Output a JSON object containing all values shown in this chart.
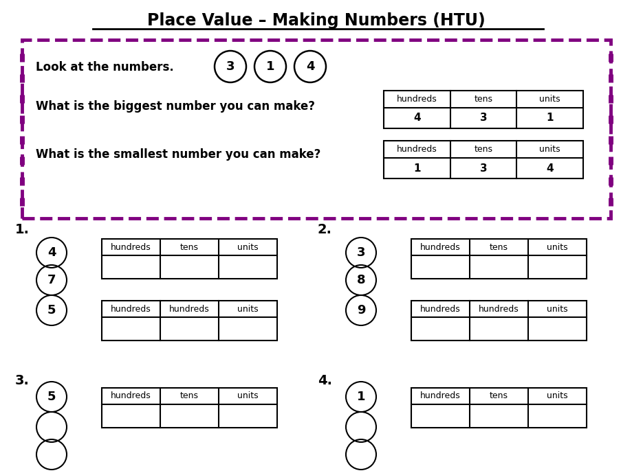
{
  "title": "Place Value – Making Numbers (HTU)",
  "bg_color": "#ffffff",
  "purple": "#800080",
  "black": "#000000",
  "example": {
    "numbers": [
      "3",
      "1",
      "4"
    ],
    "look_text": "Look at the numbers.",
    "biggest_text": "What is the biggest number you can make?",
    "smallest_text": "What is the smallest number you can make?",
    "biggest_row": [
      "4",
      "3",
      "1"
    ],
    "smallest_row": [
      "1",
      "3",
      "4"
    ]
  },
  "problems": [
    {
      "label": "1.",
      "circles": [
        "4",
        "7",
        "5"
      ],
      "table1_headers": [
        "hundreds",
        "tens",
        "units"
      ],
      "table2_headers": [
        "hundreds",
        "hundreds",
        "units"
      ]
    },
    {
      "label": "2.",
      "circles": [
        "3",
        "8",
        "9"
      ],
      "table1_headers": [
        "hundreds",
        "tens",
        "units"
      ],
      "table2_headers": [
        "hundreds",
        "hundreds",
        "units"
      ]
    },
    {
      "label": "3.",
      "circles": [
        "5",
        "",
        ""
      ],
      "table1_headers": [
        "hundreds",
        "tens",
        "units"
      ],
      "table2_headers": null
    },
    {
      "label": "4.",
      "circles": [
        "1",
        "",
        ""
      ],
      "table1_headers": [
        "hundreds",
        "tens",
        "units"
      ],
      "table2_headers": null
    }
  ]
}
